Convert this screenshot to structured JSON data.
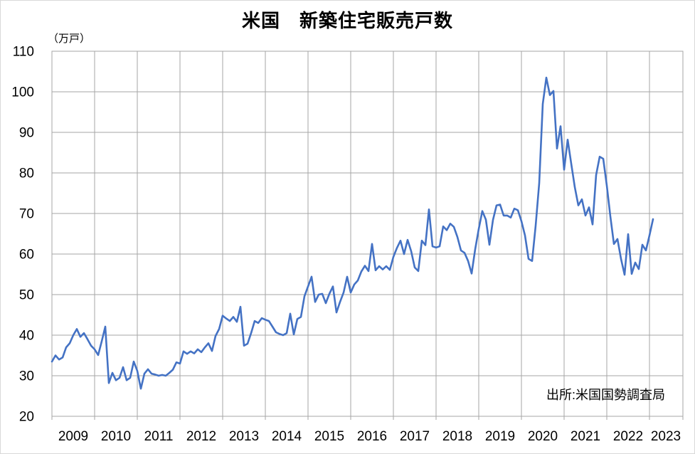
{
  "title": "米国　新築住宅販売戸数",
  "unit_label": "（万戸）",
  "source": "出所:米国国勢調査局",
  "chart_data": {
    "type": "line",
    "title": "米国　新築住宅販売戸数",
    "ylabel": "（万戸）",
    "unit": "万戸",
    "frequency": "monthly",
    "start": "2009-01",
    "end": "2023-02",
    "ylim": [
      20,
      110
    ],
    "grid": true,
    "legend": false,
    "line_color": "#4472c4",
    "grid_color": "#a6a6a6",
    "y_ticks": [
      110,
      100,
      90,
      80,
      70,
      60,
      50,
      40,
      30,
      20
    ],
    "x_tick_labels": [
      "2009",
      "2010",
      "2011",
      "2012",
      "2013",
      "2014",
      "2015",
      "2016",
      "2017",
      "2018",
      "2019",
      "2020",
      "2021",
      "2022",
      "2023"
    ],
    "series_name": "新築住宅販売戸数",
    "values": [
      33.5,
      35.0,
      34.0,
      34.5,
      37.0,
      38.0,
      40.0,
      41.5,
      39.6,
      40.5,
      39.0,
      37.4,
      36.5,
      35.1,
      38.5,
      42.1,
      28.2,
      30.7,
      28.9,
      29.5,
      32.1,
      28.9,
      29.5,
      33.5,
      31.2,
      26.8,
      30.5,
      31.6,
      30.5,
      30.3,
      30.0,
      30.2,
      30.0,
      30.7,
      31.5,
      33.3,
      33.0,
      36.0,
      35.4,
      36.0,
      35.5,
      36.5,
      35.8,
      37.0,
      38.0,
      36.1,
      39.8,
      41.5,
      44.8,
      44.1,
      43.5,
      44.5,
      43.3,
      47.0,
      37.4,
      37.9,
      40.5,
      43.5,
      43.0,
      44.2,
      43.8,
      43.5,
      42.1,
      40.7,
      40.3,
      40.0,
      40.5,
      45.3,
      40.2,
      44.0,
      44.5,
      49.6,
      52.0,
      54.4,
      48.2,
      50.0,
      50.2,
      47.9,
      50.2,
      52.0,
      45.6,
      48.2,
      50.5,
      54.4,
      50.5,
      52.5,
      53.5,
      55.7,
      57.1,
      55.8,
      62.5,
      56.0,
      57.0,
      56.2,
      57.0,
      56.1,
      59.3,
      61.5,
      63.3,
      60.0,
      63.5,
      60.7,
      56.7,
      55.8,
      63.3,
      62.2,
      71.0,
      61.9,
      61.6,
      61.9,
      66.8,
      65.9,
      67.5,
      66.7,
      64.2,
      60.9,
      60.3,
      58.3,
      55.2,
      61.2,
      66.2,
      70.6,
      68.5,
      62.3,
      68.4,
      72.0,
      72.2,
      69.5,
      69.5,
      69.0,
      71.2,
      70.8,
      68.1,
      64.6,
      58.8,
      58.3,
      67.0,
      77.5,
      97.0,
      103.5,
      99.2,
      100.2,
      86.0,
      91.5,
      80.8,
      88.2,
      82.3,
      76.5,
      72.0,
      73.5,
      69.5,
      71.5,
      67.3,
      79.5,
      84.0,
      83.5,
      76.9,
      69.3,
      62.5,
      63.7,
      58.8,
      54.9,
      64.9,
      55.1,
      57.9,
      56.3,
      62.3,
      60.9,
      64.6,
      68.6
    ]
  }
}
